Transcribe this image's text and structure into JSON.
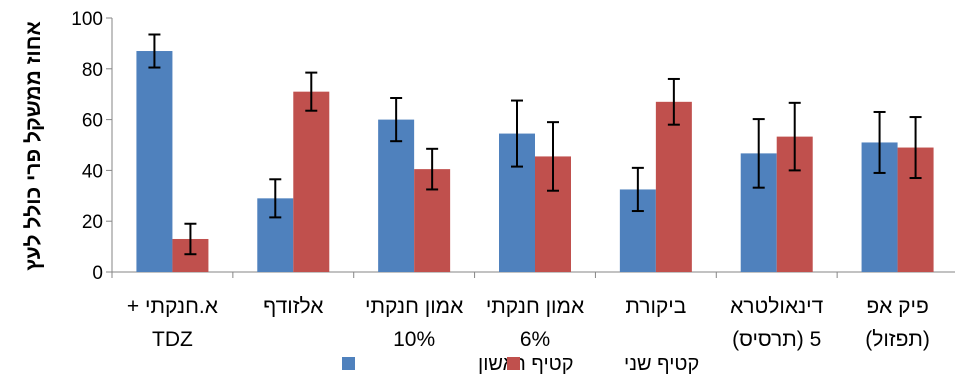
{
  "chart_data": {
    "type": "bar",
    "ylabel": "אחוז ממשקל פרי כולל לעץ",
    "xlabel": "",
    "title": "",
    "ylim": [
      0,
      100
    ],
    "yticks": [
      0,
      20,
      40,
      60,
      80,
      100
    ],
    "grid": false,
    "legend_position": "bottom",
    "categories": [
      {
        "line1": "א.חנקתי +",
        "line2": "TDZ"
      },
      {
        "line1": "אלזודף",
        "line2": ""
      },
      {
        "line1": "אמון חנקתי",
        "line2": "10%"
      },
      {
        "line1": "אמון חנקתי",
        "line2": "6%"
      },
      {
        "line1": "ביקורת",
        "line2": ""
      },
      {
        "line1": "דינאולטרא",
        "line2": "5  (תרסיס)"
      },
      {
        "line1": "פיק אפ",
        "line2": "(תפזול)"
      }
    ],
    "series": [
      {
        "name": "קטיף ראשון",
        "color": "#4f81bd",
        "values": [
          87,
          29,
          60,
          54.5,
          32.5,
          46.7,
          51
        ],
        "errors": [
          6.5,
          7.5,
          8.5,
          13,
          8.5,
          13.5,
          12
        ]
      },
      {
        "name": "קטיף שני",
        "color": "#c0504d",
        "values": [
          13,
          71,
          40.5,
          45.5,
          67,
          53.3,
          49
        ],
        "errors": [
          6,
          7.5,
          8,
          13.5,
          9,
          13.3,
          12
        ]
      }
    ]
  }
}
